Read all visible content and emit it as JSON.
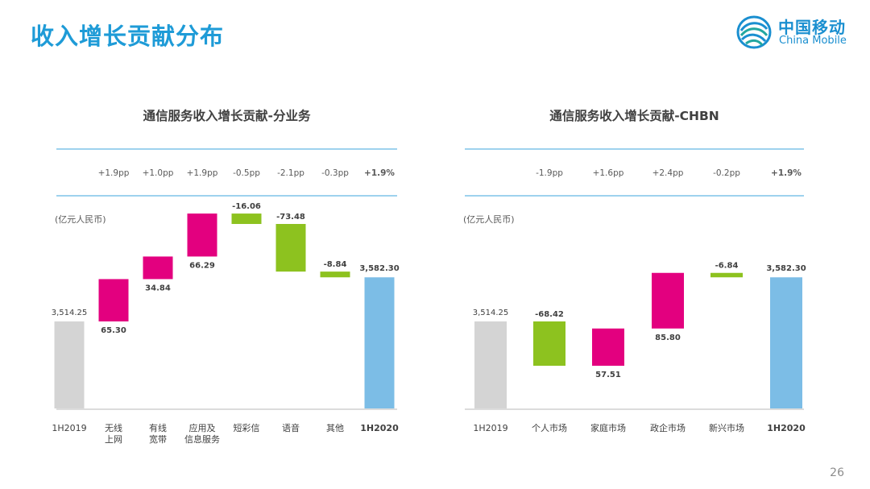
{
  "page": {
    "title": "收入增长贡献分布",
    "page_number": "26"
  },
  "logo": {
    "name_cn": "中国移动",
    "name_en": "China Mobile"
  },
  "colors": {
    "title_blue": "#1e9bd7",
    "rule_blue": "#7fc3e8",
    "baseline_gray": "#d0d0d0",
    "positive": "#e3007f",
    "negative": "#8dc21f",
    "end_bar": "#7cbde6"
  },
  "chart_data": [
    {
      "type": "bar",
      "subtype": "waterfall",
      "title": "通信服务收入增长贡献-分业务",
      "unit_label": "(亿元人民币)",
      "categories": [
        "1H2019",
        "无线\n上网",
        "有线\n宽带",
        "应用及\n信息服务",
        "短彩信",
        "语音",
        "其他",
        "1H2020"
      ],
      "start_value": 3514.25,
      "start_label": "3,514.25",
      "changes": [
        65.3,
        34.84,
        66.29,
        -16.06,
        -73.48,
        -8.84
      ],
      "change_labels": [
        "65.30",
        "34.84",
        "66.29",
        "-16.06",
        "-73.48",
        "-8.84"
      ],
      "end_value": 3582.3,
      "end_label": "3,582.30",
      "contribution_pp": [
        "",
        "+1.9pp",
        "+1.0pp",
        "+1.9pp",
        "-0.5pp",
        "-2.1pp",
        "-0.3pp",
        "+1.9%"
      ],
      "ylim_display": [
        3380,
        3600
      ]
    },
    {
      "type": "bar",
      "subtype": "waterfall",
      "title": "通信服务收入增长贡献-CHBN",
      "unit_label": "(亿元人民币)",
      "categories": [
        "1H2019",
        "个人市场",
        "家庭市场",
        "政企市场",
        "新兴市场",
        "1H2020"
      ],
      "start_value": 3514.25,
      "start_label": "3,514.25",
      "changes": [
        -68.42,
        57.51,
        85.8,
        -6.84
      ],
      "change_labels": [
        "-68.42",
        "57.51",
        "85.80",
        "-6.84"
      ],
      "end_value": 3582.3,
      "end_label": "3,582.30",
      "contribution_pp": [
        "",
        "-1.9pp",
        "+1.6pp",
        "+2.4pp",
        "-0.2pp",
        "+1.9%"
      ],
      "ylim_display": [
        3380,
        3600
      ]
    }
  ]
}
